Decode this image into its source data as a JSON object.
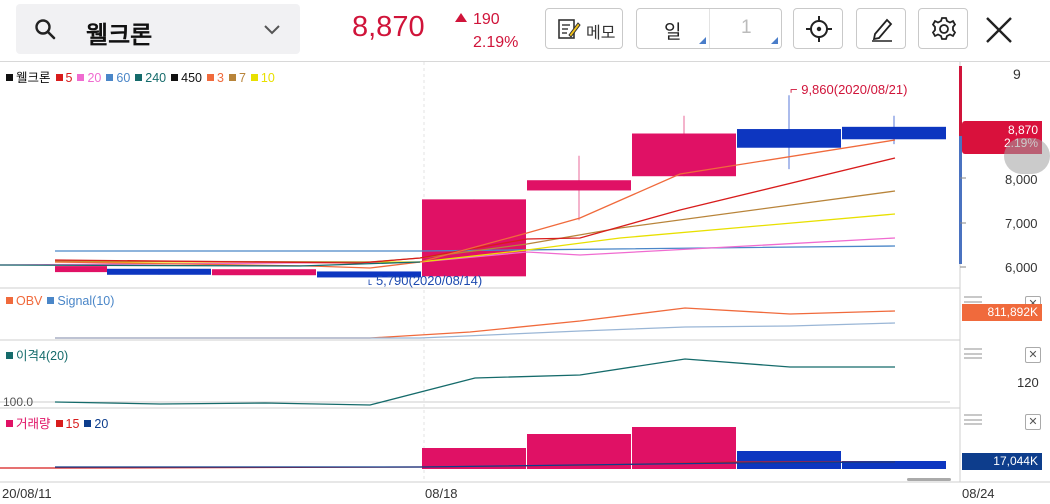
{
  "header": {
    "stock_name": "웰크론",
    "price": "8,870",
    "change_amount": "190",
    "change_percent": "2.19%",
    "memo_label": "메모",
    "period_label": "일",
    "period_value": "1"
  },
  "colors": {
    "up": "#d0143a",
    "down": "#1034b4",
    "candle_up": "#e01165",
    "candle_down": "#0d36c0"
  },
  "legend_main": [
    {
      "label": "웰크론",
      "color": "#111111"
    },
    {
      "label": "5",
      "color": "#d81c1c"
    },
    {
      "label": "20",
      "color": "#f06bd0"
    },
    {
      "label": "60",
      "color": "#4a86c8"
    },
    {
      "label": "240",
      "color": "#156b6b"
    },
    {
      "label": "450",
      "color": "#111111"
    },
    {
      "label": "3",
      "color": "#f06a3c"
    },
    {
      "label": "7",
      "color": "#b8843a"
    },
    {
      "label": "10",
      "color": "#e8e000"
    }
  ],
  "legend_obv": [
    {
      "label": "OBV",
      "color": "#f06a3c"
    },
    {
      "label": "Signal(10)",
      "color": "#4a86c8"
    }
  ],
  "legend_disparity": [
    {
      "label": "이격4(20)",
      "color": "#156b6b"
    }
  ],
  "legend_volume": [
    {
      "label": "거래량",
      "color": "#e01165"
    },
    {
      "label": "15",
      "color": "#d81c1c"
    },
    {
      "label": "20",
      "color": "#0d3d8c"
    }
  ],
  "price_axis": {
    "top_label": "9",
    "ticks": [
      "8,000",
      "7,000",
      "6,000"
    ]
  },
  "price_tag": {
    "price": "8,870",
    "percent": "2.19%"
  },
  "annotations": {
    "high": "9,860(2020/08/21)",
    "low": "5,790(2020/08/14)"
  },
  "obv_value": "811,892K",
  "disparity": {
    "axis_label": "120",
    "baseline": "100.0"
  },
  "volume_value": "17,044K",
  "x_axis": [
    "20/08/11",
    "08/18",
    "08/24"
  ],
  "chart_data": {
    "type": "candlestick",
    "dates": [
      "08/11",
      "08/12",
      "08/13",
      "08/14",
      "08/18",
      "08/19",
      "08/20",
      "08/21",
      "08/24"
    ],
    "ohlc": [
      {
        "open": 6020,
        "high": 6020,
        "low": 6020,
        "close": 6020
      },
      {
        "open": 5960,
        "high": 5960,
        "low": 5830,
        "close": 5830
      },
      {
        "open": 5950,
        "high": 5950,
        "low": 5950,
        "close": 5950
      },
      {
        "open": 5900,
        "high": 5900,
        "low": 5790,
        "close": 5790
      },
      {
        "open": 5790,
        "high": 7520,
        "low": 5790,
        "close": 7520
      },
      {
        "open": 7720,
        "high": 8500,
        "low": 7050,
        "close": 7950
      },
      {
        "open": 8040,
        "high": 9400,
        "low": 8040,
        "close": 9000
      },
      {
        "open": 9100,
        "high": 9860,
        "low": 8200,
        "close": 8680
      },
      {
        "open": 9150,
        "high": 9400,
        "low": 8760,
        "close": 8870
      }
    ],
    "y_ticks": [
      8000,
      7000,
      6000
    ]
  }
}
